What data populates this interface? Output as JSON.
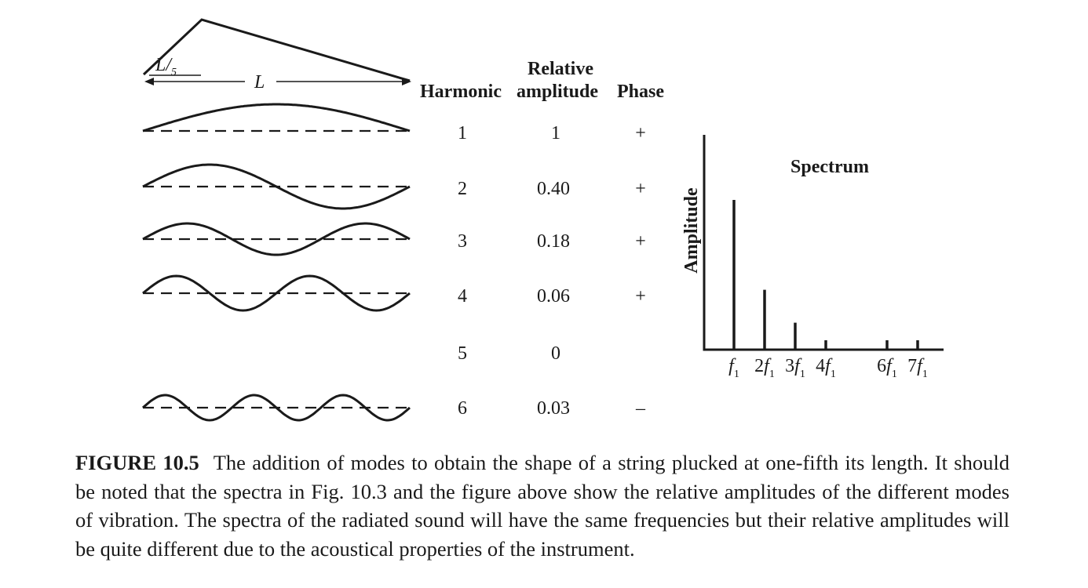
{
  "table": {
    "header_relative": "Relative",
    "header_harmonic": "Harmonic",
    "header_amplitude": "amplitude",
    "header_phase": "Phase",
    "rows": [
      {
        "harmonic": "1",
        "amplitude": "1",
        "phase": "+"
      },
      {
        "harmonic": "2",
        "amplitude": "0.40",
        "phase": "+"
      },
      {
        "harmonic": "3",
        "amplitude": "0.18",
        "phase": "+"
      },
      {
        "harmonic": "4",
        "amplitude": "0.06",
        "phase": "+"
      },
      {
        "harmonic": "5",
        "amplitude": "0",
        "phase": ""
      },
      {
        "harmonic": "6",
        "amplitude": "0.03",
        "phase": "–"
      }
    ]
  },
  "string_diagram": {
    "pluck_label_L": "L",
    "pluck_label_fraction": "/",
    "pluck_label_denominator": "5",
    "length_label": "L"
  },
  "chart_data": {
    "type": "bar",
    "title": "Spectrum",
    "ylabel": "Amplitude",
    "xlabel": "",
    "categories": [
      "f1",
      "2f1",
      "3f1",
      "4f1",
      "6f1",
      "7f1"
    ],
    "values": [
      1,
      0.4,
      0.18,
      0.06,
      0.03,
      0.02
    ],
    "tick_labels": [
      {
        "num": "",
        "sym": "f",
        "sub": "1"
      },
      {
        "num": "2",
        "sym": "f",
        "sub": "1"
      },
      {
        "num": "3",
        "sym": "f",
        "sub": "1"
      },
      {
        "num": "4",
        "sym": "f",
        "sub": "1"
      },
      {
        "num": "6",
        "sym": "f",
        "sub": "1"
      },
      {
        "num": "7",
        "sym": "f",
        "sub": "1"
      }
    ],
    "x_positions": [
      1,
      2,
      3,
      4,
      6,
      7
    ],
    "x_range": [
      0,
      8
    ],
    "grid": false
  },
  "caption": {
    "label": "FIGURE 10.5",
    "text": "The addition of modes to obtain the shape of a string plucked at one-fifth its length. It should be noted that the spectra in Fig. 10.3 and the figure above show the relative amplitudes of the different modes of vibration. The spectra of the radiated sound will have the same frequencies but their relative amplitudes will be quite different due to the acoustical properties of the instrument."
  }
}
